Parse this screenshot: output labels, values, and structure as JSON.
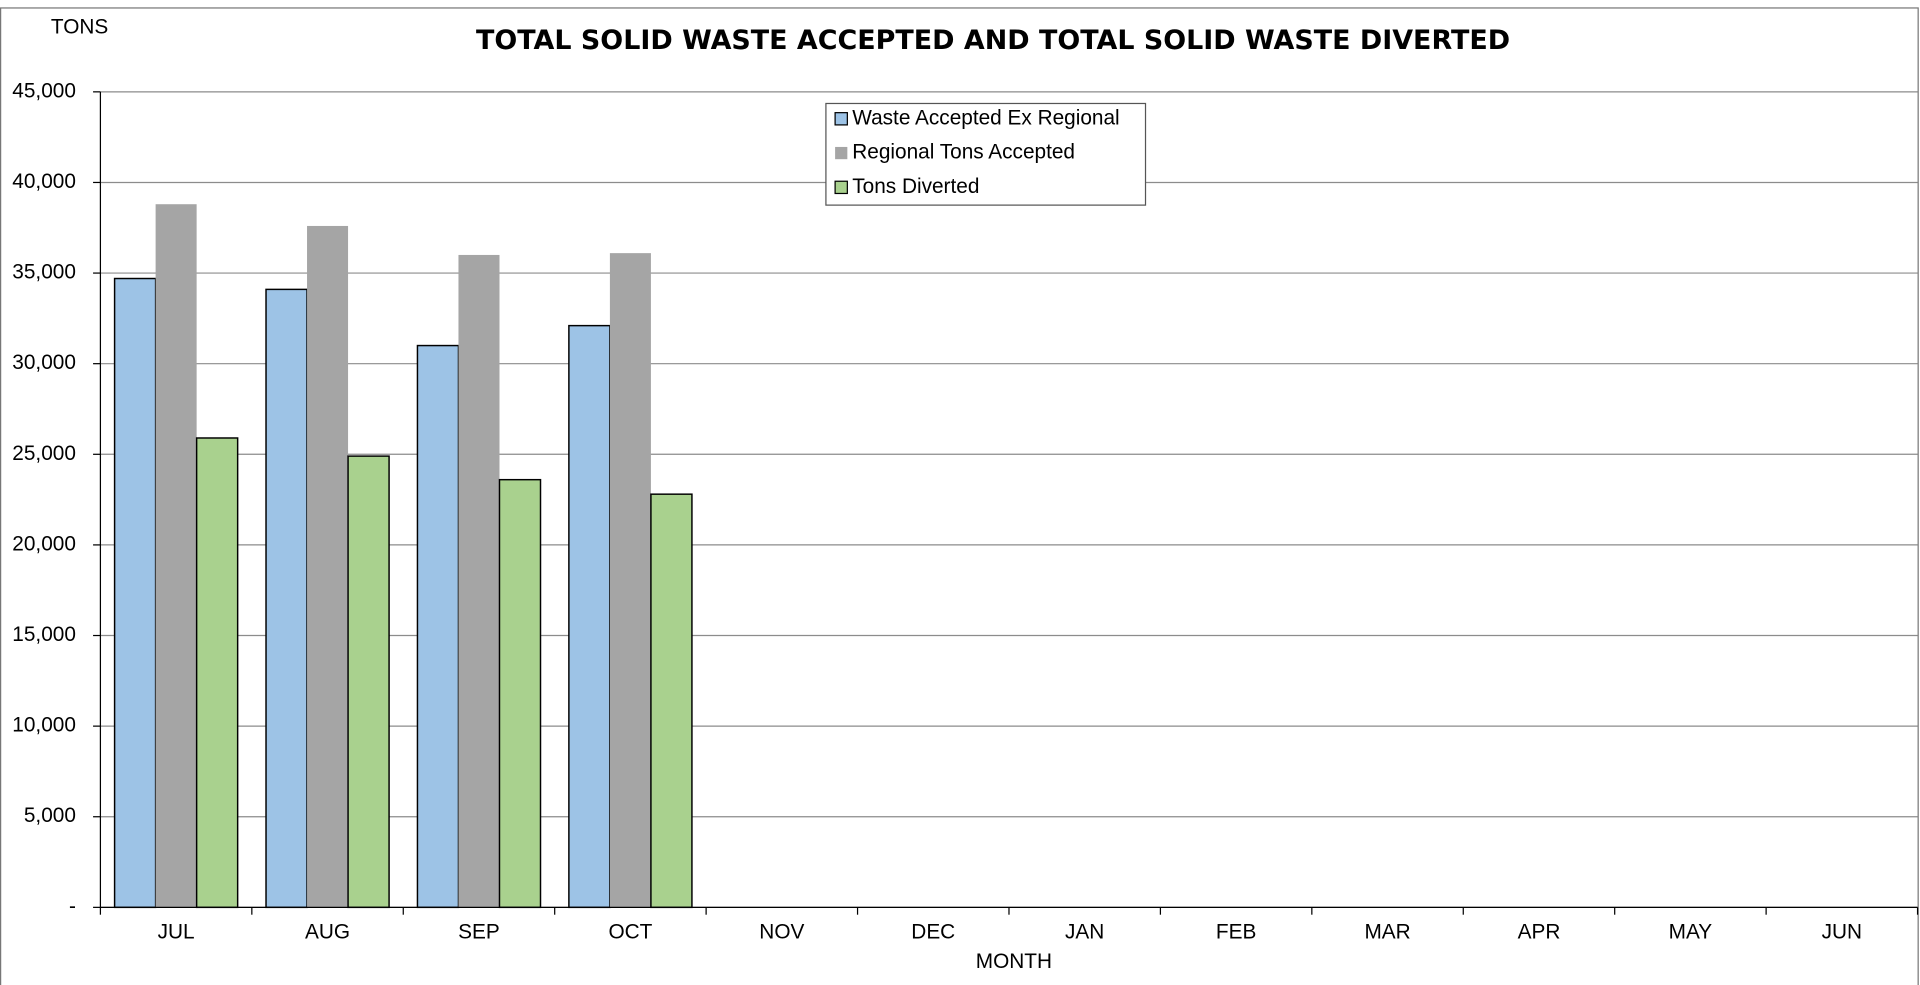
{
  "chart_data": {
    "type": "bar",
    "title": "TOTAL SOLID WASTE ACCEPTED AND TOTAL SOLID WASTE DIVERTED",
    "y_label": "TONS",
    "x_label": "MONTH",
    "categories": [
      "JUL",
      "AUG",
      "SEP",
      "OCT",
      "NOV",
      "DEC",
      "JAN",
      "FEB",
      "MAR",
      "APR",
      "MAY",
      "JUN"
    ],
    "series": [
      {
        "name": "Waste Accepted Ex Regional",
        "color": "#9dc3e6",
        "edgecolor": "#000000",
        "values": [
          34700,
          34100,
          31000,
          32100,
          null,
          null,
          null,
          null,
          null,
          null,
          null,
          null
        ]
      },
      {
        "name": "Regional Tons Accepted",
        "color": "#a5a5a5",
        "edgecolor": null,
        "values": [
          38800,
          37600,
          36000,
          36100,
          null,
          null,
          null,
          null,
          null,
          null,
          null,
          null
        ]
      },
      {
        "name": "Tons Diverted",
        "color": "#a9d18e",
        "edgecolor": "#000000",
        "values": [
          25900,
          24900,
          23600,
          22800,
          null,
          null,
          null,
          null,
          null,
          null,
          null,
          null
        ]
      }
    ],
    "ylim": [
      0,
      45000
    ],
    "yticks": [
      {
        "value": 0,
        "label": "-"
      },
      {
        "value": 5000,
        "label": "5,000"
      },
      {
        "value": 10000,
        "label": "10,000"
      },
      {
        "value": 15000,
        "label": "15,000"
      },
      {
        "value": 20000,
        "label": "20,000"
      },
      {
        "value": 25000,
        "label": "25,000"
      },
      {
        "value": 30000,
        "label": "30,000"
      },
      {
        "value": 35000,
        "label": "35,000"
      },
      {
        "value": 40000,
        "label": "40,000"
      },
      {
        "value": 45000,
        "label": "45,000"
      }
    ],
    "grid": true,
    "legend": "top center"
  }
}
